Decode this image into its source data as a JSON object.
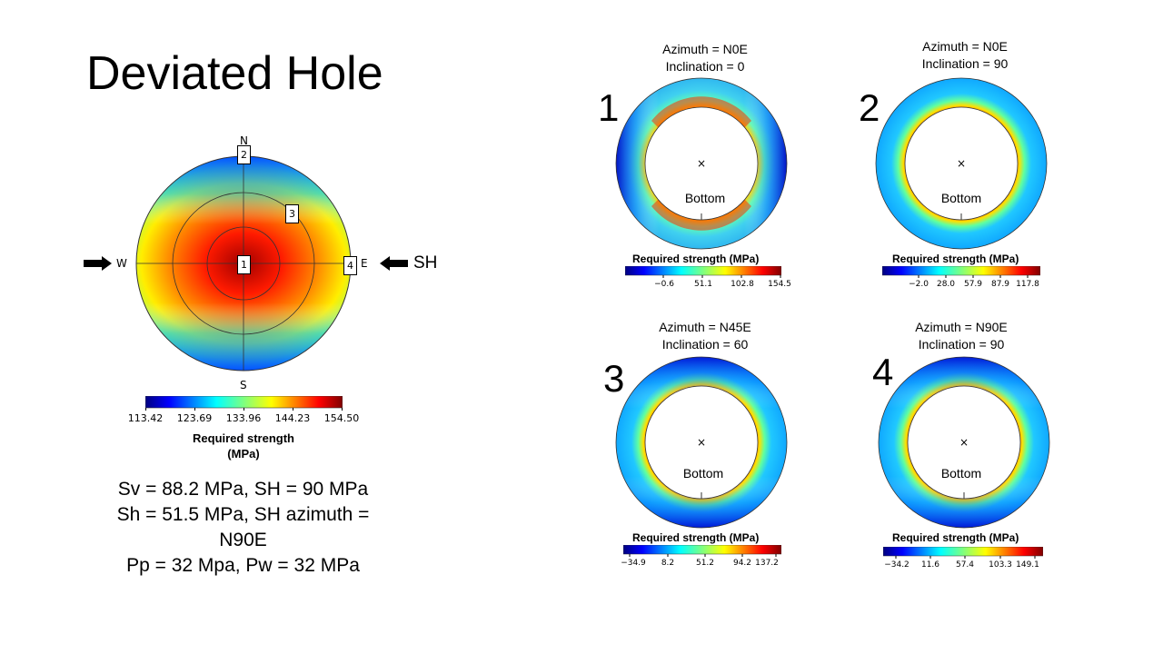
{
  "title": "Deviated Hole",
  "stereonet": {
    "compass": {
      "n": "N",
      "s": "S",
      "e": "E",
      "w": "W"
    },
    "markers": [
      "1",
      "2",
      "3",
      "4"
    ],
    "sh_label": "SH",
    "colorbar": {
      "title_line1": "Required strength",
      "title_line2": "(MPa)",
      "ticks": [
        "113.42",
        "123.69",
        "133.96",
        "144.23",
        "154.50"
      ]
    }
  },
  "params": {
    "line1": "Sv = 88.2 MPa, SH = 90 MPa",
    "line2": "Sh = 51.5 MPa, SH azimuth =",
    "line3": "N90E",
    "line4": "Pp = 32 Mpa, Pw = 32 MPa"
  },
  "panels": [
    {
      "number": "1",
      "azimuth": "Azimuth = N0E",
      "inclination": "Inclination = 0",
      "bottom": "Bottom",
      "center": "×",
      "cb_title": "Required strength (MPa)",
      "ticks": [
        "−0.6",
        "51.1",
        "102.8",
        "154.5"
      ]
    },
    {
      "number": "2",
      "azimuth": "Azimuth = N0E",
      "inclination": "Inclination = 90",
      "bottom": "Bottom",
      "center": "×",
      "cb_title": "Required strength (MPa)",
      "ticks": [
        "−2.0",
        "28.0",
        "57.9",
        "87.9",
        "117.8"
      ]
    },
    {
      "number": "3",
      "azimuth": "Azimuth = N45E",
      "inclination": "Inclination = 60",
      "bottom": "Bottom",
      "center": "×",
      "cb_title": "Required strength (MPa)",
      "ticks": [
        "−34.9",
        "8.2",
        "51.2",
        "94.2",
        "137.2"
      ]
    },
    {
      "number": "4",
      "azimuth": "Azimuth = N90E",
      "inclination": "Inclination = 90",
      "bottom": "Bottom",
      "center": "×",
      "cb_title": "Required strength (MPa)",
      "ticks": [
        "−34.2",
        "11.6",
        "57.4",
        "103.3",
        "149.1"
      ]
    }
  ],
  "colors": {
    "jet": [
      "#00007f",
      "#0000ff",
      "#007fff",
      "#00ffff",
      "#7fff7f",
      "#ffff00",
      "#ff7f00",
      "#ff0000",
      "#7f0000"
    ]
  }
}
